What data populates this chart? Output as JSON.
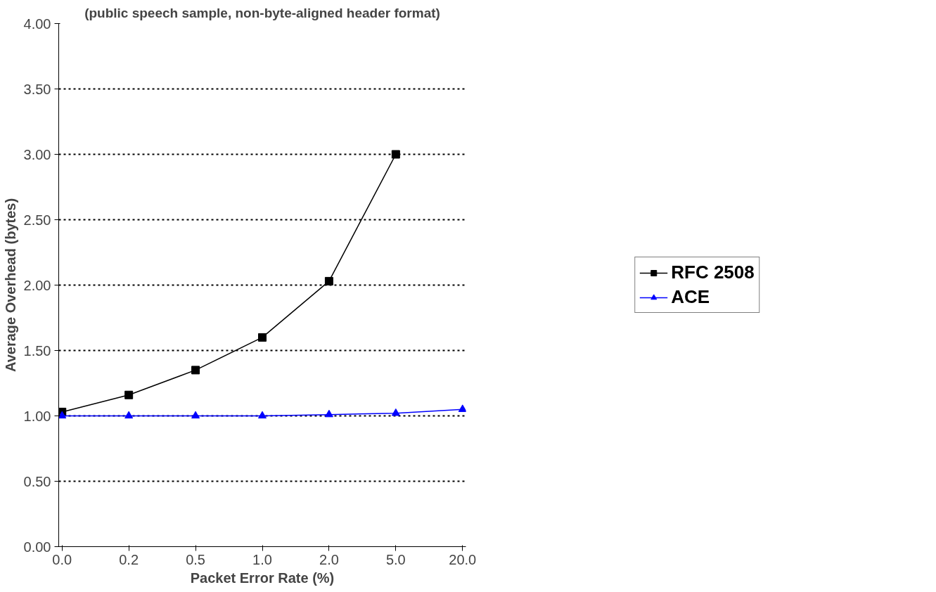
{
  "chart_data": {
    "type": "line",
    "title": "(public speech sample, non-byte-aligned header format)",
    "xlabel": "Packet Error Rate (%)",
    "ylabel": "Average Overhead (bytes)",
    "categories": [
      "0.0",
      "0.2",
      "0.5",
      "1.0",
      "2.0",
      "5.0",
      "20.0"
    ],
    "series": [
      {
        "name": "RFC 2508",
        "color": "#000000",
        "marker": "square",
        "values": [
          1.03,
          1.16,
          1.35,
          1.6,
          2.03,
          3.0,
          null
        ]
      },
      {
        "name": "ACE",
        "color": "#0000ff",
        "marker": "triangle",
        "values": [
          1.0,
          1.0,
          1.0,
          1.0,
          1.01,
          1.02,
          1.05
        ]
      }
    ],
    "ylim": [
      0,
      4
    ],
    "yticks": [
      {
        "value": 0,
        "label": "0.00"
      },
      {
        "value": 0.5,
        "label": "0.50"
      },
      {
        "value": 1,
        "label": "1.00"
      },
      {
        "value": 1.5,
        "label": "1.50"
      },
      {
        "value": 2,
        "label": "2.00"
      },
      {
        "value": 2.5,
        "label": "2.50"
      },
      {
        "value": 3,
        "label": "3.00"
      },
      {
        "value": 3.5,
        "label": "3.50"
      },
      {
        "value": 4,
        "label": "4.00"
      }
    ],
    "grid": "y",
    "legend": "right",
    "line_style": "solid"
  }
}
